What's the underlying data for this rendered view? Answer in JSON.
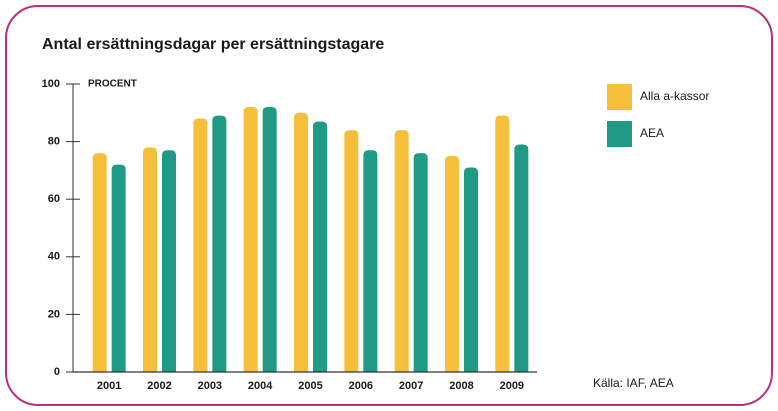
{
  "chart_data": {
    "type": "bar",
    "title": "Antal ersättningsdagar per ersättningstagare",
    "y_label": "PROCENT",
    "source": "Källa: IAF, AEA",
    "categories": [
      "2001",
      "2002",
      "2003",
      "2004",
      "2005",
      "2006",
      "2007",
      "2008",
      "2009"
    ],
    "series": [
      {
        "name": "Alla a-kassor",
        "color": "#f5bf3a",
        "values": [
          76,
          78,
          88,
          92,
          90,
          84,
          84,
          75,
          89
        ]
      },
      {
        "name": "AEA",
        "color": "#1e9a85",
        "values": [
          72,
          77,
          89,
          92,
          87,
          77,
          76,
          71,
          79
        ]
      }
    ],
    "ylim": [
      0,
      100
    ],
    "yticks": [
      0,
      20,
      40,
      60,
      80,
      100
    ]
  }
}
